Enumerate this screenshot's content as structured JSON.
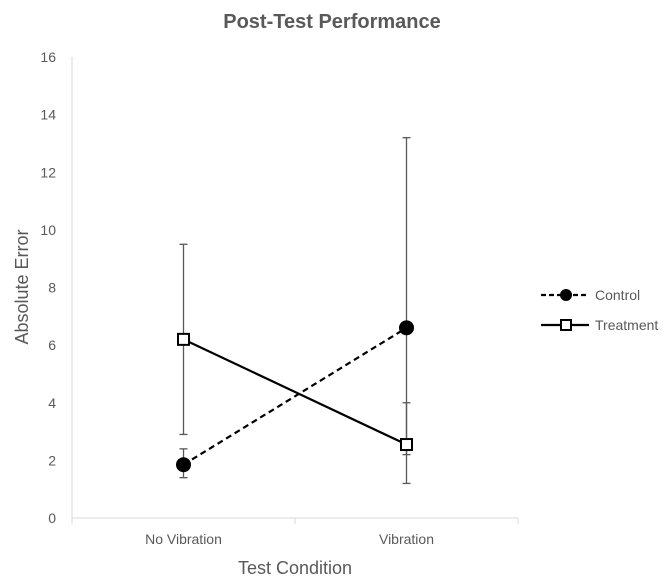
{
  "chart_data": {
    "type": "line",
    "title": "Post-Test Performance",
    "xlabel": "Test Condition",
    "ylabel": "Absolute Error",
    "categories": [
      "No Vibration",
      "Vibration"
    ],
    "ylim": [
      0,
      16
    ],
    "yticks": [
      "0",
      "2",
      "4",
      "6",
      "8",
      "10",
      "12",
      "14",
      "16"
    ],
    "grid": false,
    "legend_position": "right",
    "series": [
      {
        "name": "Control",
        "marker": "filled-circle",
        "line_style": "dashed",
        "color": "#000000",
        "values": [
          1.85,
          6.6
        ],
        "error_low": [
          1.4,
          1.2
        ],
        "error_high": [
          2.4,
          13.2
        ]
      },
      {
        "name": "Treatment",
        "marker": "open-square",
        "line_style": "solid",
        "color": "#000000",
        "values": [
          6.2,
          2.55
        ],
        "error_low": [
          2.9,
          2.2
        ],
        "error_high": [
          9.5,
          4.0
        ]
      }
    ]
  }
}
